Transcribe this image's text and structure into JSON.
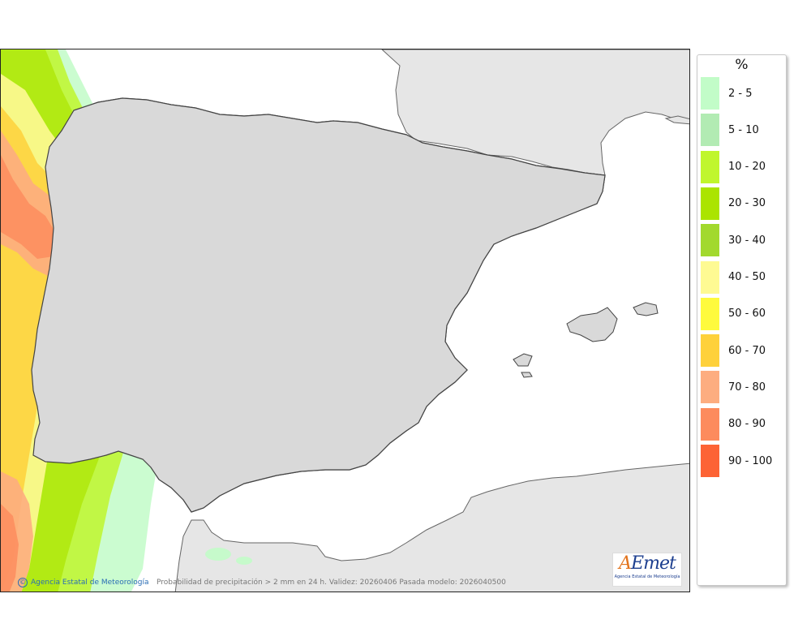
{
  "legend": {
    "title": "%",
    "items": [
      {
        "label": "2 - 5",
        "color": "#c2fcc8"
      },
      {
        "label": "5 - 10",
        "color": "#b2ebb3"
      },
      {
        "label": "10 - 20",
        "color": "#c0f62d"
      },
      {
        "label": "20 - 30",
        "color": "#abe400"
      },
      {
        "label": "30 - 40",
        "color": "#a2d92d"
      },
      {
        "label": "40 - 50",
        "color": "#fefa93"
      },
      {
        "label": "50 - 60",
        "color": "#fefa3d"
      },
      {
        "label": "60 - 70",
        "color": "#fed13b"
      },
      {
        "label": "70 - 80",
        "color": "#fdad80"
      },
      {
        "label": "80 - 90",
        "color": "#fd8b5d"
      },
      {
        "label": "90 - 100",
        "color": "#fd6335"
      }
    ]
  },
  "footer": {
    "credit_symbol": "©",
    "credit": "Agencia Estatal de Meteorología",
    "caption": "Probabilidad de precipitación > 2 mm en 24 h. Validez: 20260406 Pasada modelo: 2026040500"
  },
  "logo": {
    "mark_a": "A",
    "mark_rest": "Emet",
    "subtitle": "Agencia Estatal de Meteorología"
  }
}
